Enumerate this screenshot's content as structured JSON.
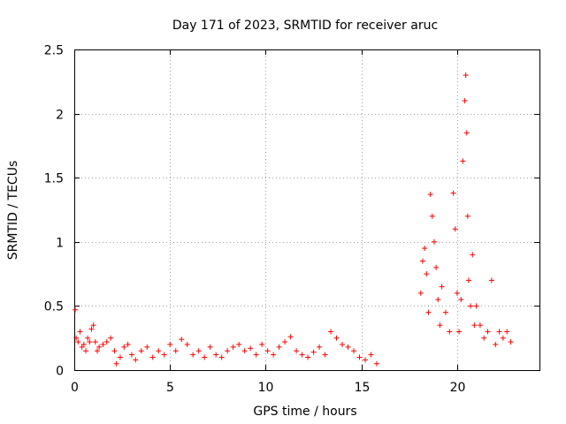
{
  "chart_data": {
    "type": "scatter",
    "title": "Day 171 of 2023, SRMTID for receiver aruc",
    "xlabel": "GPS time / hours",
    "ylabel": "SRMTID / TECUs",
    "xlim": [
      0,
      24.3
    ],
    "ylim": [
      0,
      2.5
    ],
    "xticks": [
      0,
      5,
      10,
      15,
      20
    ],
    "xtick_labels": [
      "0",
      "5",
      "10",
      "15",
      "20"
    ],
    "yticks": [
      0,
      0.5,
      1,
      1.5,
      2,
      2.5
    ],
    "ytick_labels": [
      "0",
      "0.5",
      "1",
      "1.5",
      "2",
      "2.5"
    ],
    "grid": true,
    "marker": "plus",
    "color": "#ff0000",
    "series": [
      {
        "name": "SRMTID",
        "points": [
          [
            0.05,
            0.47
          ],
          [
            0.1,
            0.25
          ],
          [
            0.2,
            0.22
          ],
          [
            0.3,
            0.3
          ],
          [
            0.4,
            0.18
          ],
          [
            0.5,
            0.2
          ],
          [
            0.6,
            0.15
          ],
          [
            0.7,
            0.25
          ],
          [
            0.8,
            0.22
          ],
          [
            0.9,
            0.32
          ],
          [
            1.0,
            0.35
          ],
          [
            1.1,
            0.22
          ],
          [
            1.2,
            0.15
          ],
          [
            1.3,
            0.18
          ],
          [
            1.5,
            0.2
          ],
          [
            1.7,
            0.22
          ],
          [
            1.9,
            0.25
          ],
          [
            2.1,
            0.15
          ],
          [
            2.2,
            0.05
          ],
          [
            2.4,
            0.1
          ],
          [
            2.6,
            0.18
          ],
          [
            2.8,
            0.2
          ],
          [
            3.0,
            0.12
          ],
          [
            3.2,
            0.08
          ],
          [
            3.5,
            0.15
          ],
          [
            3.8,
            0.18
          ],
          [
            4.1,
            0.1
          ],
          [
            4.4,
            0.15
          ],
          [
            4.7,
            0.12
          ],
          [
            5.0,
            0.2
          ],
          [
            5.3,
            0.15
          ],
          [
            5.6,
            0.24
          ],
          [
            5.9,
            0.2
          ],
          [
            6.2,
            0.12
          ],
          [
            6.5,
            0.15
          ],
          [
            6.8,
            0.1
          ],
          [
            7.1,
            0.18
          ],
          [
            7.4,
            0.12
          ],
          [
            7.7,
            0.1
          ],
          [
            8.0,
            0.15
          ],
          [
            8.3,
            0.18
          ],
          [
            8.6,
            0.2
          ],
          [
            8.9,
            0.15
          ],
          [
            9.2,
            0.17
          ],
          [
            9.5,
            0.12
          ],
          [
            9.8,
            0.2
          ],
          [
            10.1,
            0.15
          ],
          [
            10.4,
            0.12
          ],
          [
            10.7,
            0.18
          ],
          [
            11.0,
            0.22
          ],
          [
            11.3,
            0.26
          ],
          [
            11.6,
            0.15
          ],
          [
            11.9,
            0.12
          ],
          [
            12.2,
            0.1
          ],
          [
            12.5,
            0.14
          ],
          [
            12.8,
            0.18
          ],
          [
            13.1,
            0.12
          ],
          [
            13.4,
            0.3
          ],
          [
            13.7,
            0.25
          ],
          [
            14.0,
            0.2
          ],
          [
            14.3,
            0.18
          ],
          [
            14.6,
            0.15
          ],
          [
            14.9,
            0.1
          ],
          [
            15.2,
            0.08
          ],
          [
            15.5,
            0.12
          ],
          [
            15.8,
            0.05
          ],
          [
            18.1,
            0.6
          ],
          [
            18.2,
            0.85
          ],
          [
            18.3,
            0.95
          ],
          [
            18.4,
            0.75
          ],
          [
            18.5,
            0.45
          ],
          [
            18.6,
            1.37
          ],
          [
            18.7,
            1.2
          ],
          [
            18.8,
            1.0
          ],
          [
            18.9,
            0.8
          ],
          [
            19.0,
            0.55
          ],
          [
            19.1,
            0.35
          ],
          [
            19.2,
            0.65
          ],
          [
            19.4,
            0.45
          ],
          [
            19.6,
            0.3
          ],
          [
            19.8,
            1.38
          ],
          [
            19.9,
            1.1
          ],
          [
            20.0,
            0.6
          ],
          [
            20.1,
            0.3
          ],
          [
            20.2,
            0.55
          ],
          [
            20.3,
            1.63
          ],
          [
            20.4,
            2.1
          ],
          [
            20.45,
            2.3
          ],
          [
            20.5,
            1.85
          ],
          [
            20.55,
            1.2
          ],
          [
            20.6,
            0.7
          ],
          [
            20.7,
            0.5
          ],
          [
            20.8,
            0.9
          ],
          [
            20.9,
            0.35
          ],
          [
            21.0,
            0.5
          ],
          [
            21.2,
            0.35
          ],
          [
            21.4,
            0.25
          ],
          [
            21.6,
            0.3
          ],
          [
            21.8,
            0.7
          ],
          [
            22.0,
            0.2
          ],
          [
            22.2,
            0.3
          ],
          [
            22.4,
            0.25
          ],
          [
            22.6,
            0.3
          ],
          [
            22.8,
            0.22
          ]
        ]
      }
    ]
  }
}
